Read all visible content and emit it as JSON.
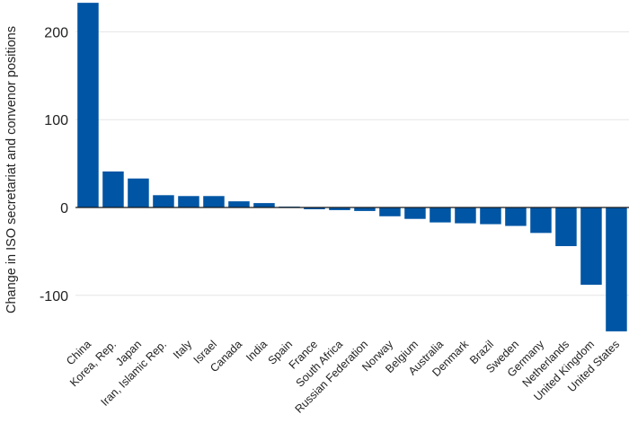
{
  "chart_data": {
    "type": "bar",
    "title": "",
    "xlabel": "",
    "ylabel": "Change in ISO secretariat and convenor positions",
    "ylim": [
      -150,
      235
    ],
    "yticks": [
      -100,
      0,
      100,
      200
    ],
    "grid": true,
    "legend": "none",
    "bar_color": "#0055a4",
    "categories": [
      "China",
      "Korea, Rep.",
      "Japan",
      "Iran, Islamic Rep.",
      "Italy",
      "Israel",
      "Canada",
      "India",
      "Spain",
      "France",
      "South Africa",
      "Russian Federation",
      "Norway",
      "Belgium",
      "Australia",
      "Denmark",
      "Brazil",
      "Sweden",
      "Germany",
      "Netherlands",
      "United Kingdom",
      "United States"
    ],
    "values": [
      233,
      41,
      33,
      14,
      13,
      13,
      7,
      5,
      1,
      -2,
      -3,
      -4,
      -10,
      -13,
      -17,
      -18,
      -19,
      -21,
      -29,
      -44,
      -88,
      -141
    ]
  }
}
